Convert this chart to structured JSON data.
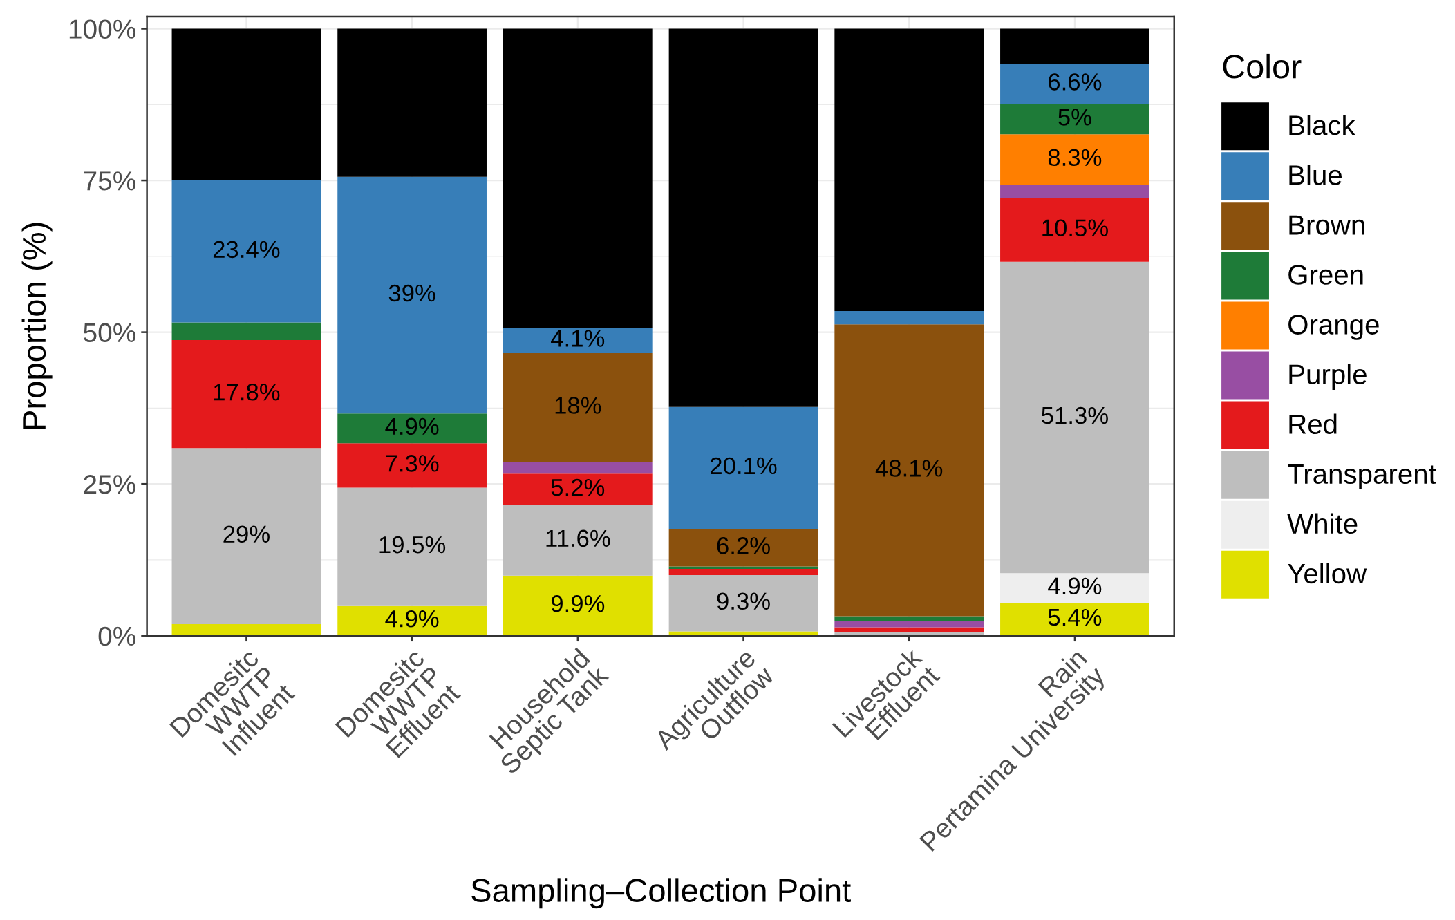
{
  "chart_data": {
    "type": "bar",
    "stacked": true,
    "categories": [
      "Domesitc\nWWTP\nInfluent",
      "Domesitc\nWWTP\nEffluent",
      "Household\nSeptic Tank",
      "Agriculture\nOutflow",
      "Livestock\nEffluent",
      "Rain\nPertamina University"
    ],
    "series": [
      {
        "name": "Yellow",
        "color": "#e0e000",
        "values": [
          1.9,
          4.9,
          9.9,
          0.7,
          null,
          5.4
        ],
        "value_labels": [
          null,
          "4.9%",
          "9.9%",
          null,
          null,
          "5.4%"
        ]
      },
      {
        "name": "White",
        "color": "#eeeeee",
        "values": [
          null,
          null,
          null,
          null,
          null,
          4.9
        ],
        "value_labels": [
          null,
          null,
          null,
          null,
          null,
          "4.9%"
        ]
      },
      {
        "name": "Transparent",
        "color": "#bebebe",
        "values": [
          29,
          19.5,
          11.6,
          9.3,
          0.6,
          51.3
        ],
        "value_labels": [
          "29%",
          "19.5%",
          "11.6%",
          "9.3%",
          null,
          "51.3%"
        ]
      },
      {
        "name": "Red",
        "color": "#e41a1c",
        "values": [
          17.8,
          7.3,
          5.2,
          1.0,
          0.8,
          10.5
        ],
        "value_labels": [
          "17.8%",
          "7.3%",
          "5.2%",
          null,
          null,
          "10.5%"
        ]
      },
      {
        "name": "Purple",
        "color": "#984ea3",
        "values": [
          null,
          null,
          1.9,
          null,
          1.0,
          2.2
        ]
      },
      {
        "name": "Orange",
        "color": "#ff7f00",
        "values": [
          null,
          null,
          null,
          null,
          null,
          8.3
        ],
        "value_labels": [
          null,
          null,
          null,
          null,
          null,
          "8.3%"
        ]
      },
      {
        "name": "Green",
        "color": "#1e7b38",
        "values": [
          2.9,
          4.9,
          null,
          0.4,
          0.8,
          5.0
        ],
        "value_labels": [
          null,
          "4.9%",
          null,
          null,
          null,
          "5%"
        ]
      },
      {
        "name": "Brown",
        "color": "#8b510d",
        "values": [
          null,
          null,
          18,
          6.2,
          48.1,
          null
        ],
        "value_labels": [
          null,
          null,
          "18%",
          "6.2%",
          "48.1%",
          null
        ]
      },
      {
        "name": "Blue",
        "color": "#377eb8",
        "values": [
          23.4,
          39,
          4.1,
          20.1,
          2.2,
          6.6
        ],
        "value_labels": [
          "23.4%",
          "39%",
          "4.1%",
          "20.1%",
          null,
          "6.6%"
        ]
      },
      {
        "name": "Black",
        "color": "#000000",
        "values": [
          25.0,
          24.4,
          49.3,
          62.3,
          46.5,
          5.8
        ]
      }
    ],
    "ylim": [
      0,
      102
    ],
    "yticks": [
      {
        "value": 0,
        "label": "0%"
      },
      {
        "value": 25,
        "label": "25%"
      },
      {
        "value": 50,
        "label": "50%"
      },
      {
        "value": 75,
        "label": "75%"
      },
      {
        "value": 100,
        "label": "100%"
      }
    ],
    "xlabel": "Sampling–Collection Point",
    "ylabel": "Proportion (%)",
    "legend_title": "Color",
    "legend": "right",
    "grid": true
  }
}
